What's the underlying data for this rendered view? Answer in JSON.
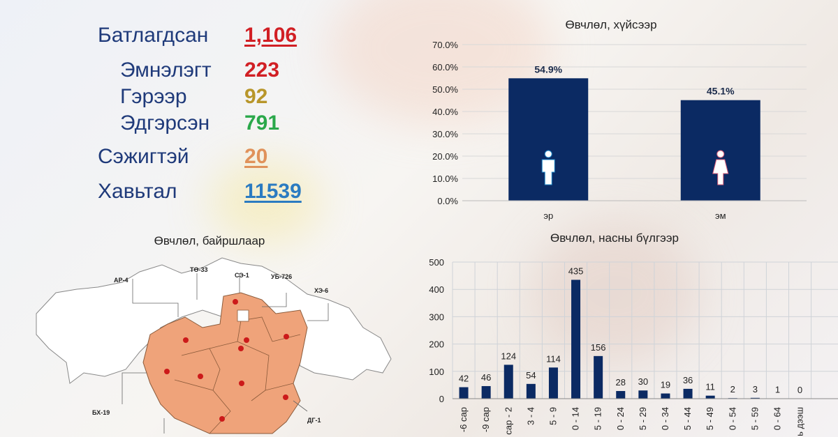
{
  "stats": {
    "confirmed": {
      "label": "Батлагдсан",
      "value": "1,106",
      "color": "#d11f24"
    },
    "hospital": {
      "label": "Эмнэлэгт",
      "value": "223",
      "color": "#d11f24"
    },
    "home": {
      "label": "Гэрээр",
      "value": "92",
      "color": "#b8962a"
    },
    "recovered": {
      "label": "Эдгэрсэн",
      "value": "791",
      "color": "#2aa84a"
    },
    "suspected": {
      "label": "Сэжигтэй",
      "value": "20",
      "color": "#e0925a"
    },
    "contact": {
      "label": "Хавьтал",
      "value": "11539",
      "color": "#2b7bc1"
    }
  },
  "map": {
    "title": "Өвчлөл, байршлаар",
    "labels": [
      "АР-4",
      "ТӨ-33",
      "СЭ-1",
      "УБ-726",
      "ХЭ-6",
      "БХ-19",
      "ДГ-1"
    ]
  },
  "chart_data": [
    {
      "type": "bar",
      "title": "Өвчлөл, хүйсээр",
      "categories": [
        "эр",
        "эм"
      ],
      "values": [
        54.9,
        45.1
      ],
      "data_labels": [
        "54.9%",
        "45.1%"
      ],
      "yticks": [
        "0.0%",
        "10.0%",
        "20.0%",
        "30.0%",
        "40.0%",
        "50.0%",
        "60.0%",
        "70.0%"
      ],
      "ylim": [
        0,
        70
      ],
      "bar_color": "#0b2a63",
      "icons": [
        "male-icon",
        "female-icon"
      ]
    },
    {
      "type": "bar",
      "title": "Өвчлөл, насны бүлгээр",
      "categories": [
        "-6 сар",
        "-9 сар",
        "сар - 2",
        "3 - 4",
        "5 - 9",
        "0 - 14",
        "5 - 19",
        "0 - 24",
        "5 - 29",
        "0 - 34",
        "5 - 44",
        "5 - 49",
        "0 - 54",
        "5 - 59",
        "0 - 64",
        "ь дээш"
      ],
      "values": [
        42,
        46,
        124,
        54,
        114,
        435,
        156,
        28,
        30,
        19,
        36,
        11,
        2,
        3,
        1,
        0
      ],
      "yticks": [
        "0",
        "100",
        "200",
        "300",
        "400",
        "500"
      ],
      "ylim": [
        0,
        500
      ],
      "bar_color": "#0b2a63"
    }
  ]
}
